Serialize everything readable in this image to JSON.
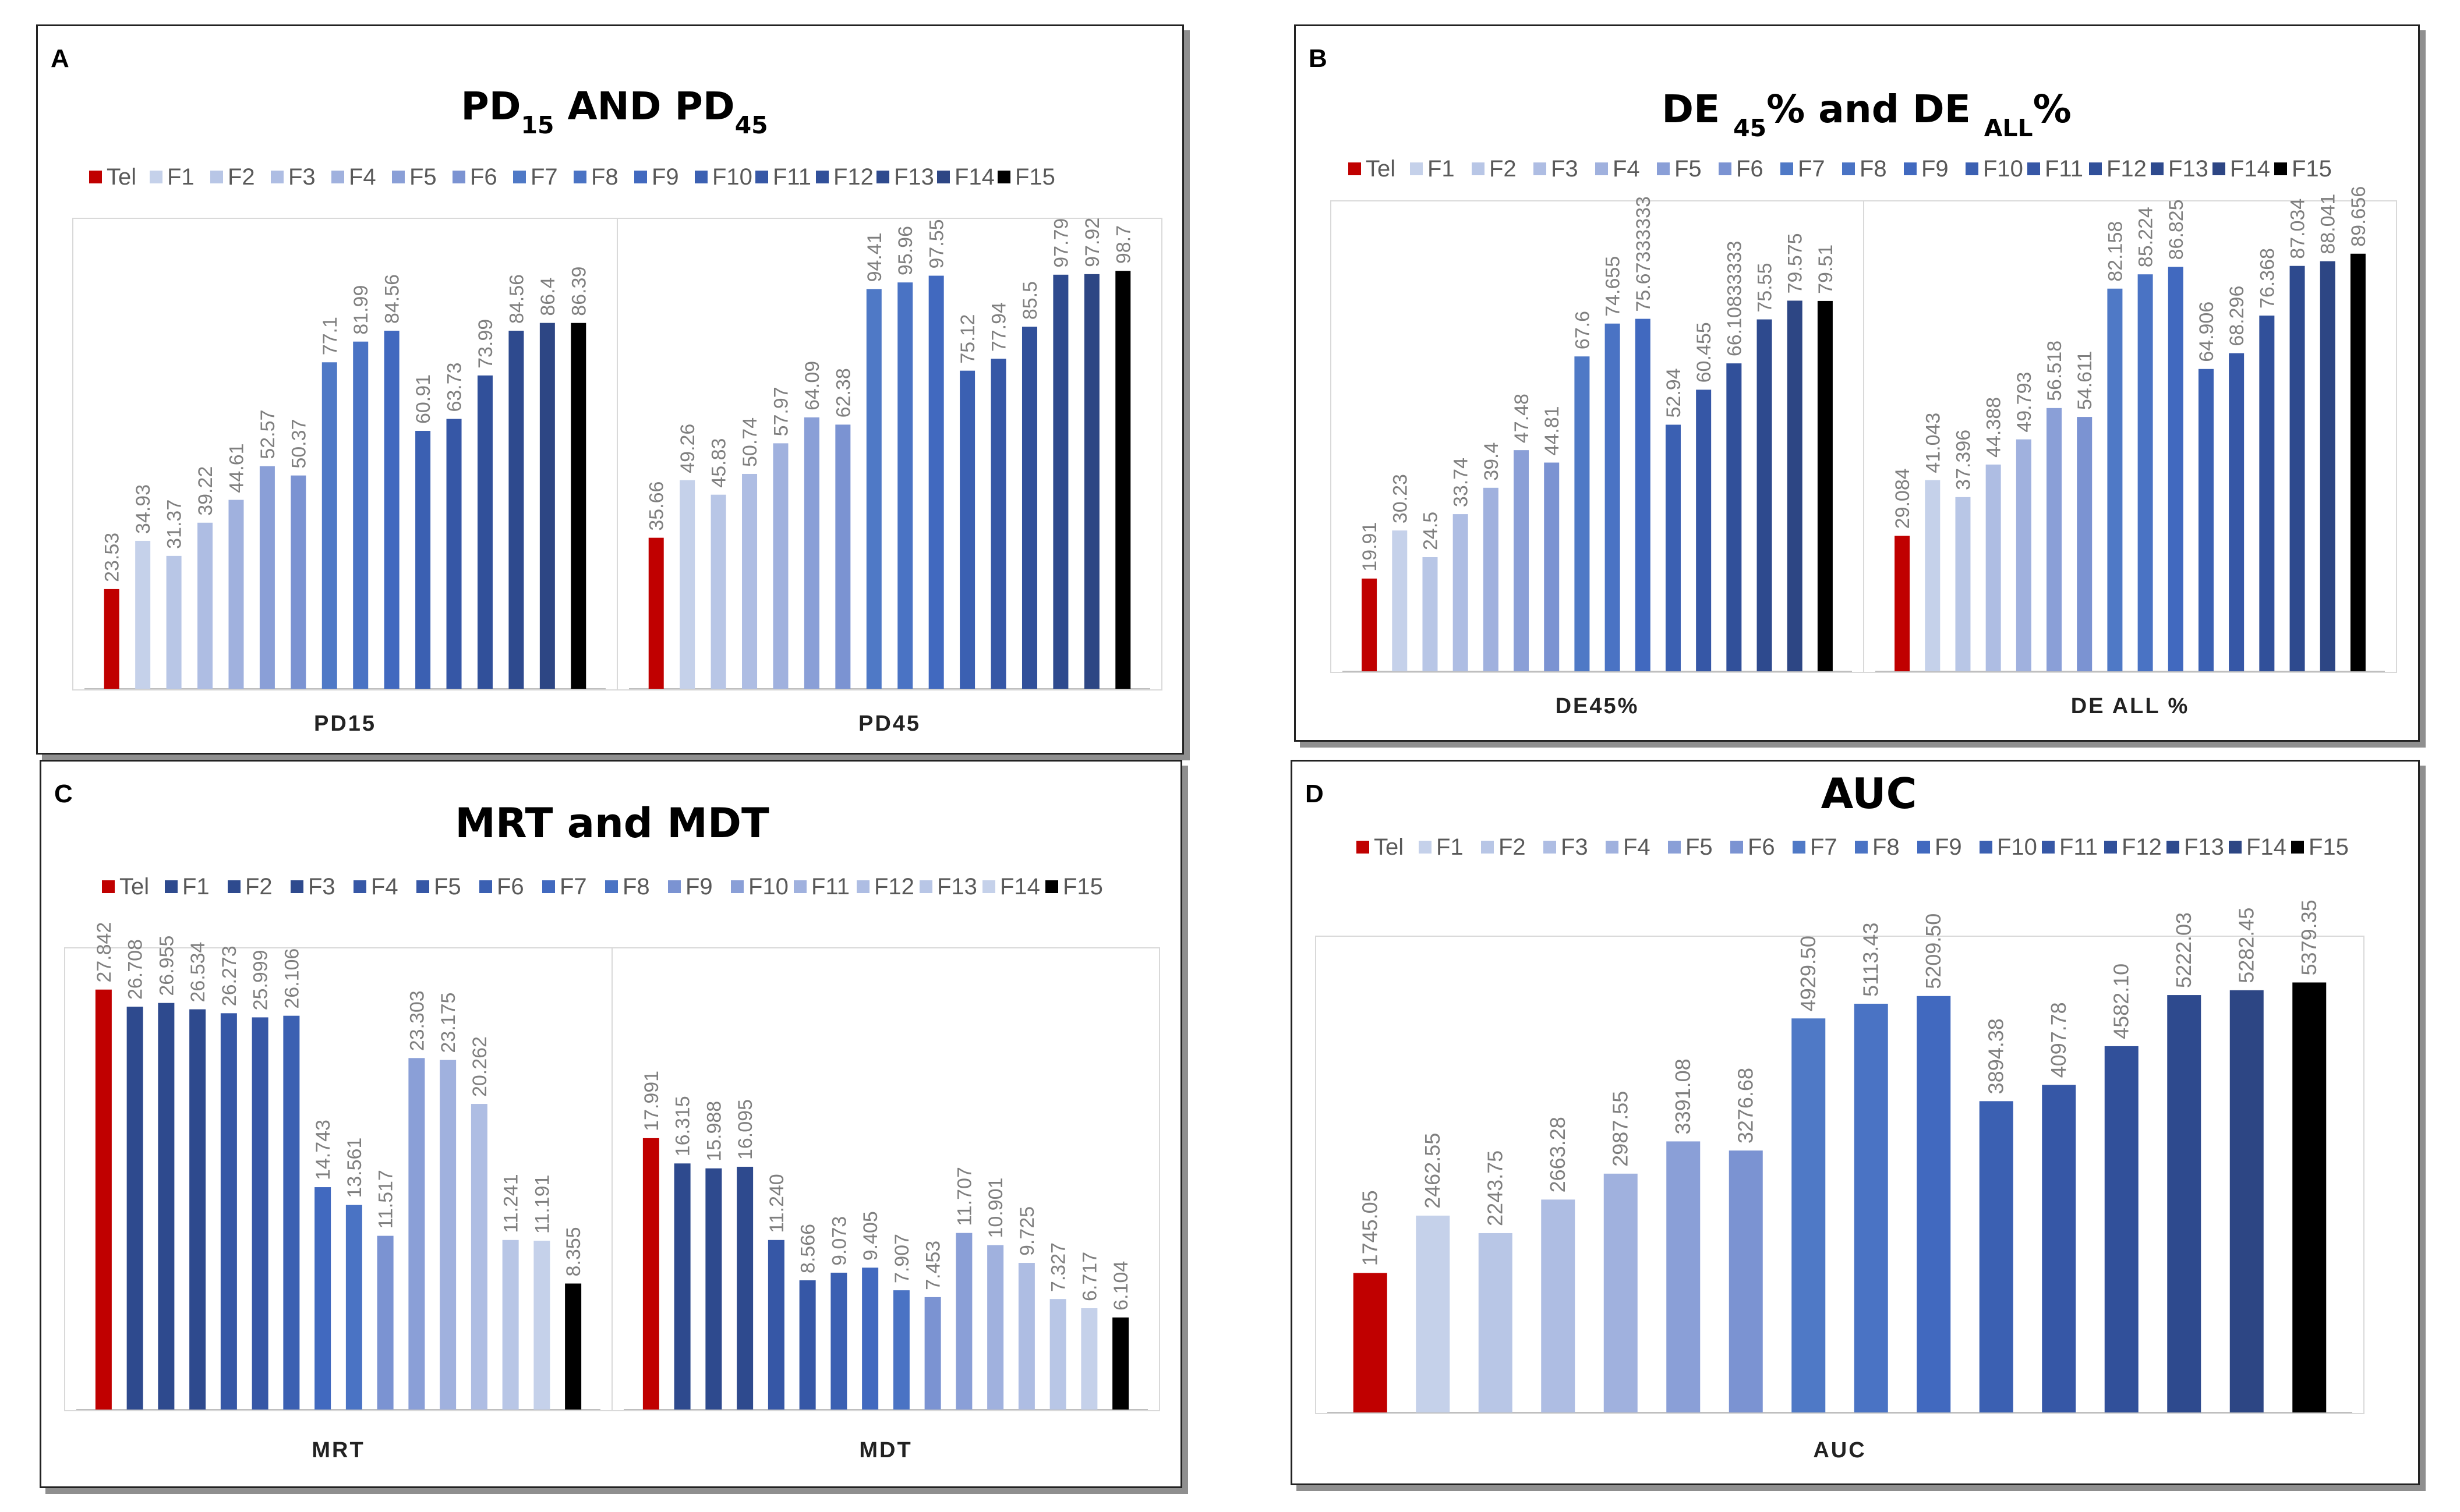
{
  "labels": [
    "Tel",
    "F1",
    "F2",
    "F3",
    "F4",
    "F5",
    "F6",
    "F7",
    "F8",
    "F9",
    "F10",
    "F11",
    "F12",
    "F13",
    "F14",
    "F15"
  ],
  "chart_data": [
    {
      "panel": "A",
      "type": "bar",
      "title": {
        "main": "PD",
        "sub1": "15",
        "mid": " AND PD",
        "sub2": "45"
      },
      "categories": [
        "Tel",
        "F1",
        "F2",
        "F3",
        "F4",
        "F5",
        "F6",
        "F7",
        "F8",
        "F9",
        "F10",
        "F11",
        "F12",
        "F13",
        "F14",
        "F15"
      ],
      "groups": [
        {
          "name": "PD15",
          "values": [
            "23.53",
            "34.93",
            "31.37",
            "39.22",
            "44.61",
            "52.57",
            "50.37",
            "77.1",
            "81.99",
            "84.56",
            "60.91",
            "63.73",
            "73.99",
            "84.56",
            "86.4",
            "86.39"
          ]
        },
        {
          "name": "PD45",
          "values": [
            "35.66",
            "49.26",
            "45.83",
            "50.74",
            "57.97",
            "64.09",
            "62.38",
            "94.41",
            "95.96",
            "97.55",
            "75.12",
            "77.94",
            "85.5",
            "97.79",
            "97.92",
            "98.7"
          ]
        }
      ],
      "ymax": 110,
      "colors": [
        "#c00000",
        "#c5d1ea",
        "#b8c6e6",
        "#aebde3",
        "#a0b1de",
        "#8a9fd7",
        "#7b93d2",
        "#4f79c6",
        "#4a73c4",
        "#4169bf",
        "#3b60b2",
        "#3657a6",
        "#31509a",
        "#2e4a8e",
        "#2d4684",
        "#000000"
      ]
    },
    {
      "panel": "B",
      "type": "bar",
      "title": {
        "main": "DE ",
        "sub1": "45",
        "mid": "% and DE ",
        "sub2": "ALL",
        "end": "%"
      },
      "categories": [
        "Tel",
        "F1",
        "F2",
        "F3",
        "F4",
        "F5",
        "F6",
        "F7",
        "F8",
        "F9",
        "F10",
        "F11",
        "F12",
        "F13",
        "F14",
        "F15"
      ],
      "groups": [
        {
          "name": "DE45%",
          "values": [
            "19.91",
            "30.23",
            "24.5",
            "33.74",
            "39.4",
            "47.48",
            "44.81",
            "67.6",
            "74.655",
            "75.67333333",
            "52.94",
            "60.455",
            "66.10833333",
            "75.55",
            "79.575",
            "79.51"
          ]
        },
        {
          "name": "DE ALL %",
          "values": [
            "29.084",
            "41.043",
            "37.396",
            "44.388",
            "49.793",
            "56.518",
            "54.611",
            "82.158",
            "85.224",
            "86.825",
            "64.906",
            "68.296",
            "76.368",
            "87.034",
            "88.041",
            "89.656"
          ]
        }
      ],
      "ymax": 100,
      "colors": [
        "#c00000",
        "#c5d1ea",
        "#b8c6e6",
        "#aebde3",
        "#a0b1de",
        "#8a9fd7",
        "#7b93d2",
        "#4f79c6",
        "#4a73c4",
        "#4169bf",
        "#3b60b2",
        "#3657a6",
        "#31509a",
        "#2e4a8e",
        "#2d4684",
        "#000000"
      ]
    },
    {
      "panel": "C",
      "type": "bar",
      "title": {
        "main": "MRT and MDT"
      },
      "categories": [
        "Tel",
        "F1",
        "F2",
        "F3",
        "F4",
        "F5",
        "F6",
        "F7",
        "F8",
        "F9",
        "F10",
        "F11",
        "F12",
        "F13",
        "F14",
        "F15"
      ],
      "groups": [
        {
          "name": "MRT",
          "values": [
            "27.842",
            "26.708",
            "26.955",
            "26.534",
            "26.273",
            "25.999",
            "26.106",
            "14.743",
            "13.561",
            "11.517",
            "23.303",
            "23.175",
            "20.262",
            "11.241",
            "11.191",
            "8.355"
          ]
        },
        {
          "name": "MDT",
          "values": [
            "17.991",
            "16.315",
            "15.988",
            "16.095",
            "11.240",
            "8.566",
            "9.073",
            "9.405",
            "7.907",
            "7.453",
            "11.707",
            "10.901",
            "9.725",
            "7.327",
            "6.717",
            "6.104"
          ]
        }
      ],
      "ymax": 30.3,
      "colors": [
        "#c00000",
        "#2e4a8e",
        "#2e4a8e",
        "#2e4a8e",
        "#3657a6",
        "#3657a6",
        "#3b60b2",
        "#4169bf",
        "#4a73c4",
        "#7b93d2",
        "#8a9fd7",
        "#a0b1de",
        "#aebde3",
        "#b8c6e6",
        "#c5d1ea",
        "#000000"
      ]
    },
    {
      "panel": "D",
      "type": "bar",
      "title": {
        "main": "AUC"
      },
      "categories": [
        "Tel",
        "F1",
        "F2",
        "F3",
        "F4",
        "F5",
        "F6",
        "F7",
        "F8",
        "F9",
        "F10",
        "F11",
        "F12",
        "F13",
        "F14",
        "F15"
      ],
      "groups": [
        {
          "name": "AUC",
          "values": [
            "1745.05",
            "2462.55",
            "2243.75",
            "2663.28",
            "2987.55",
            "3391.08",
            "3276.68",
            "4929.50",
            "5113.43",
            "5209.50",
            "3894.38",
            "4097.78",
            "4582.10",
            "5222.03",
            "5282.45",
            "5379.35"
          ]
        }
      ],
      "ymax": 5900,
      "colors": [
        "#c00000",
        "#c5d1ea",
        "#b8c6e6",
        "#aebde3",
        "#a0b1de",
        "#8a9fd7",
        "#7b93d2",
        "#4f79c6",
        "#4a73c4",
        "#4169bf",
        "#3b60b2",
        "#3657a6",
        "#31509a",
        "#2e4a8e",
        "#2d4684",
        "#000000"
      ]
    }
  ]
}
